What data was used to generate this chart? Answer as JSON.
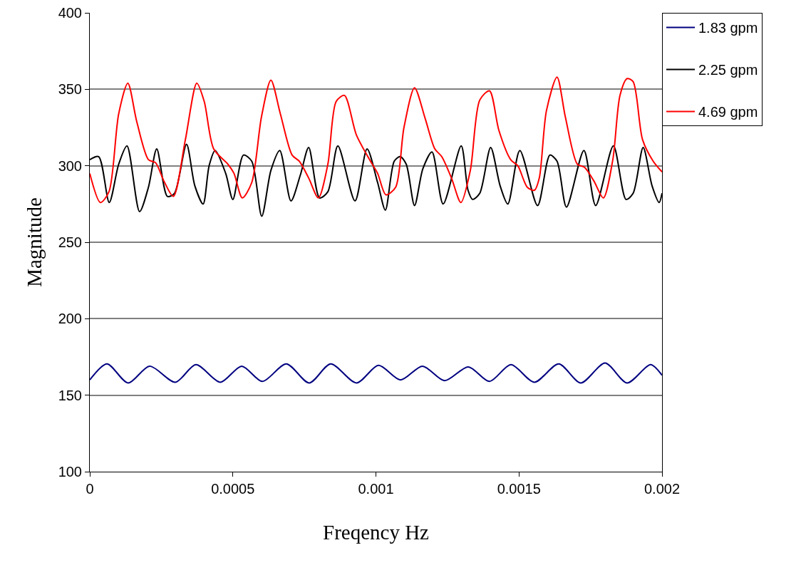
{
  "chart_data": {
    "type": "line",
    "xlabel": "Freqency Hz",
    "ylabel": "Magnitude",
    "xlim": [
      0,
      0.002
    ],
    "xticks": [
      0,
      0.0005,
      0.001,
      0.0015,
      0.002
    ],
    "ylim": [
      100,
      400
    ],
    "yticks": [
      100,
      150,
      200,
      250,
      300,
      350,
      400
    ],
    "grid": "y",
    "legend": "top right",
    "marker": "none",
    "line_style": "solid",
    "series": [
      {
        "name": "1.83 gpm",
        "color": "#000080",
        "x": [
          0,
          6e-05,
          0.000134,
          0.000209,
          0.000299,
          0.000371,
          0.000456,
          0.000531,
          0.000603,
          0.000687,
          0.000767,
          0.000842,
          0.000932,
          0.001009,
          0.001086,
          0.001163,
          0.00124,
          0.001323,
          0.001397,
          0.001472,
          0.001554,
          0.001639,
          0.001716,
          0.001801,
          0.001878,
          0.00196,
          0.002
        ],
        "values": [
          160,
          170.5,
          158,
          169,
          158.5,
          170,
          158.5,
          169,
          159,
          170.5,
          158,
          170.5,
          158,
          169.5,
          160,
          169,
          159.5,
          168.5,
          159,
          170,
          158.5,
          170.5,
          158,
          171,
          158,
          170,
          163
        ]
      },
      {
        "name": "2.25 gpm",
        "color": "#000000",
        "x": [
          0,
          3.1e-05,
          6.8e-05,
          0.000101,
          0.00013,
          0.000174,
          0.000205,
          0.000234,
          0.000271,
          0.000296,
          0.000338,
          0.000367,
          0.000396,
          0.000417,
          0.000438,
          0.000475,
          0.0005,
          0.000537,
          0.000566,
          0.000601,
          0.000633,
          0.000664,
          0.000703,
          0.000736,
          0.000765,
          0.000803,
          0.000832,
          0.000867,
          0.000927,
          0.000969,
          0.001006,
          0.001033,
          0.001064,
          0.001085,
          0.001106,
          0.001135,
          0.001164,
          0.001196,
          0.001235,
          0.001298,
          0.001322,
          0.001338,
          0.001363,
          0.001401,
          0.001434,
          0.001461,
          0.001503,
          0.001565,
          0.001608,
          0.001633,
          0.001666,
          0.001727,
          0.001768,
          0.00183,
          0.001874,
          0.001899,
          0.001934,
          0.001965,
          0.00199,
          0.002
        ],
        "values": [
          304,
          306,
          276,
          301,
          313,
          270,
          286,
          311,
          280,
          282,
          314,
          287,
          275,
          300,
          310,
          295,
          278,
          307,
          303,
          267,
          297,
          310,
          277,
          294,
          312,
          279,
          283,
          313,
          277,
          311,
          289,
          271,
          303,
          306,
          301,
          274,
          298,
          309,
          275,
          313,
          284,
          278,
          282,
          312,
          287,
          275,
          310,
          274,
          307,
          303,
          273,
          310,
          274,
          313,
          278,
          282,
          312,
          287,
          276,
          282
        ]
      },
      {
        "name": "4.69 gpm",
        "color": "#ff0000",
        "x": [
          0,
          3.7e-05,
          6.7e-05,
          0.000101,
          0.000133,
          0.000164,
          0.000205,
          0.00023,
          0.000259,
          0.000292,
          0.000334,
          0.000374,
          0.0004,
          0.000433,
          0.000483,
          0.000504,
          0.000533,
          0.000566,
          0.0006,
          0.000633,
          0.000666,
          0.000707,
          0.000732,
          0.000765,
          0.000799,
          0.000832,
          0.000861,
          0.00089,
          0.000932,
          0.000981,
          0.001006,
          0.001035,
          0.001069,
          0.001098,
          0.001135,
          0.001172,
          0.001206,
          0.00123,
          0.001264,
          0.001297,
          0.00133,
          0.001363,
          0.001397,
          0.00143,
          0.001471,
          0.001496,
          0.001529,
          0.001554,
          0.001571,
          0.001596,
          0.001633,
          0.001662,
          0.001704,
          0.001729,
          0.001762,
          0.001795,
          0.001828,
          0.001853,
          0.001878,
          0.001899,
          0.001932,
          0.001969,
          0.002
        ],
        "values": [
          295,
          276,
          283,
          334,
          354,
          329,
          304,
          302,
          290,
          280,
          317,
          354,
          342,
          311,
          301,
          295,
          279,
          289,
          332,
          356,
          334,
          307,
          303,
          292,
          279,
          301,
          342,
          346,
          320,
          303,
          295,
          281,
          286,
          325,
          351,
          331,
          311,
          306,
          292,
          276,
          297,
          343,
          349,
          323,
          304,
          300,
          286,
          284,
          292,
          336,
          358,
          332,
          301,
          299,
          290,
          279,
          304,
          346,
          357,
          355,
          317,
          303,
          296
        ]
      }
    ]
  }
}
